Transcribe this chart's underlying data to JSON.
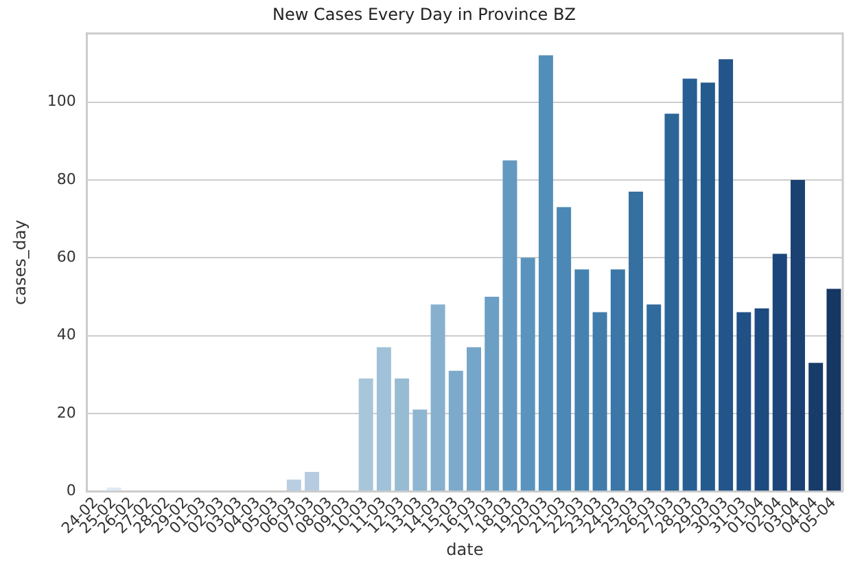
{
  "chart_data": {
    "type": "bar",
    "title": "New Cases Every Day in Province BZ",
    "xlabel": "date",
    "ylabel": "cases_day",
    "categories": [
      "24-02",
      "25-02",
      "26-02",
      "27-02",
      "28-02",
      "29-02",
      "01-03",
      "02-03",
      "03-03",
      "04-03",
      "05-03",
      "06-03",
      "07-03",
      "08-03",
      "09-03",
      "10-03",
      "11-03",
      "12-03",
      "13-03",
      "14-03",
      "15-03",
      "16-03",
      "17-03",
      "18-03",
      "19-03",
      "20-03",
      "21-03",
      "22-03",
      "23-03",
      "24-03",
      "25-03",
      "26-03",
      "27-03",
      "28-03",
      "29-03",
      "30-03",
      "31-03",
      "01-04",
      "02-04",
      "03-04",
      "04-04",
      "05-04"
    ],
    "values": [
      0,
      1,
      0,
      0,
      0,
      0,
      0,
      0,
      0,
      0,
      0,
      3,
      5,
      0,
      0,
      29,
      37,
      29,
      21,
      48,
      31,
      37,
      50,
      85,
      60,
      112,
      73,
      57,
      46,
      57,
      77,
      48,
      97,
      106,
      105,
      111,
      46,
      47,
      61,
      80,
      33,
      52
    ],
    "colors": [
      "#e4edf6",
      "#e0eaf4",
      "#dce7f2",
      "#d8e4f0",
      "#d4e1ee",
      "#d0deec",
      "#cddbea",
      "#c9d9e8",
      "#c5d6e6",
      "#c1d3e4",
      "#bdd1e3",
      "#bacee2",
      "#b6cbe0",
      "#b1c9df",
      "#adc6dd",
      "#a8c6da",
      "#a0c1d7",
      "#98bbd4",
      "#8fb6d1",
      "#86b0ce",
      "#7daacb",
      "#75a5c8",
      "#6c9fc4",
      "#6399c1",
      "#5a94be",
      "#528eba",
      "#4c88b5",
      "#4682b0",
      "#417cab",
      "#3b76a6",
      "#3670a1",
      "#316a9c",
      "#2c6597",
      "#285f93",
      "#255a8f",
      "#22558a",
      "#205085",
      "#1e4b7f",
      "#1c4679",
      "#1a4172",
      "#183c6a",
      "#163762"
    ],
    "ylim": [
      0,
      117.6
    ],
    "yticks": [
      0,
      20,
      40,
      60,
      80,
      100
    ],
    "grid": "y"
  }
}
